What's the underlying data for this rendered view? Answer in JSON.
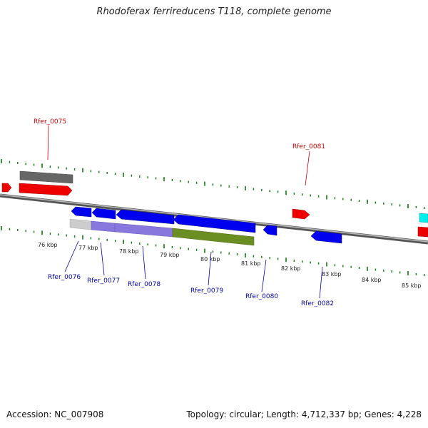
{
  "title": "Rhodoferax ferrireducens T118, complete genome",
  "footer": {
    "accession": "Accession: NC_007908",
    "summary": "Topology: circular; Length: 4,712,337 bp; Genes: 4,228"
  },
  "colors": {
    "forward_gene": "#ee0000",
    "reverse_gene": "#0000ee",
    "forward_label": "#cc0000",
    "reverse_label": "#0000aa",
    "tick": "#117711",
    "backbone": "#888888",
    "grey_feature": "#666666",
    "cyan_feature": "#00eeee",
    "olive_feature": "#6b8e23",
    "lavender_feature": "#8877dd"
  },
  "axis_labels": [
    "76 kbp",
    "77 kbp",
    "78 kbp",
    "79 kbp",
    "80 kbp",
    "81 kbp",
    "82 kbp",
    "83 kbp",
    "84 kbp",
    "85 kbp"
  ],
  "genes": [
    {
      "id": "Rfer_0075",
      "strand": "forward"
    },
    {
      "id": "Rfer_0076",
      "strand": "reverse"
    },
    {
      "id": "Rfer_0077",
      "strand": "reverse"
    },
    {
      "id": "Rfer_0078",
      "strand": "reverse"
    },
    {
      "id": "Rfer_0079",
      "strand": "reverse"
    },
    {
      "id": "Rfer_0080",
      "strand": "reverse"
    },
    {
      "id": "Rfer_0081",
      "strand": "forward"
    },
    {
      "id": "Rfer_0082",
      "strand": "reverse"
    }
  ]
}
